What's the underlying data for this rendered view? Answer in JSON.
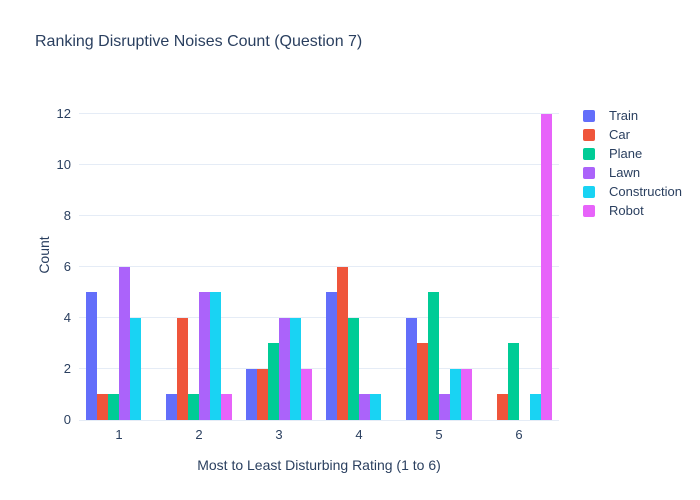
{
  "title": "Ranking Disruptive Noises Count (Question 7)",
  "styles": {
    "text_color": "#2a3f5f",
    "grid_color": "#E5ECF6",
    "background": "#ffffff"
  },
  "chart_data": {
    "type": "bar",
    "mode": "grouped",
    "title": "Ranking Disruptive Noises Count (Question 7)",
    "xlabel": "Most to Least Disturbing Rating (1 to 6)",
    "ylabel": "Count",
    "categories": [
      "1",
      "2",
      "3",
      "4",
      "5",
      "6"
    ],
    "series": [
      {
        "name": "Train",
        "color": "#636EFA",
        "values": [
          5,
          1,
          2,
          5,
          4,
          0
        ]
      },
      {
        "name": "Car",
        "color": "#EF553B",
        "values": [
          1,
          4,
          2,
          6,
          3,
          1
        ]
      },
      {
        "name": "Plane",
        "color": "#00CC96",
        "values": [
          1,
          1,
          3,
          4,
          5,
          3
        ]
      },
      {
        "name": "Lawn",
        "color": "#AB63FA",
        "values": [
          6,
          5,
          4,
          1,
          1,
          0
        ]
      },
      {
        "name": "Construction",
        "color": "#19D3F3",
        "values": [
          4,
          5,
          4,
          1,
          2,
          1
        ]
      },
      {
        "name": "Robot",
        "color": "#E763FA",
        "values": [
          0,
          1,
          2,
          0,
          2,
          12
        ]
      }
    ],
    "yticks": [
      0,
      2,
      4,
      6,
      8,
      10,
      12
    ],
    "ylim": [
      0,
      12.9
    ],
    "grid": true,
    "legend_position": "right"
  }
}
